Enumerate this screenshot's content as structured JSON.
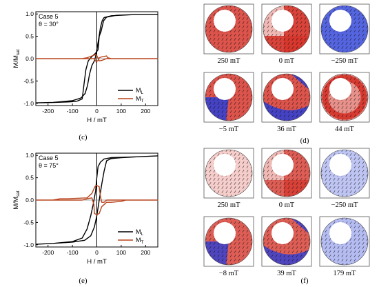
{
  "colors": {
    "ml": "#000000",
    "mt": "#b8431a",
    "red": "#d6362c",
    "blue": "#2a3fd8",
    "frame": "#555555"
  },
  "captions": {
    "c": "(c)",
    "d": "(d)",
    "e": "(e)",
    "f": "(f)"
  },
  "chart_data": [
    {
      "type": "line",
      "panel": "c",
      "annotation_case": "Case 5",
      "annotation_theta": "θ = 30°",
      "xlabel": "H / mT",
      "ylabel_main": "M/M",
      "ylabel_sub": "sat",
      "xlim": [
        -250,
        250
      ],
      "ylim": [
        -1.05,
        1.05
      ],
      "xticks": [
        "-200",
        "-100",
        "0",
        "100",
        "200"
      ],
      "xtick_values": [
        -200,
        -100,
        0,
        100,
        200
      ],
      "yticks": [
        "-1.0",
        "-0.5",
        "0.0",
        "0.5",
        "1.0"
      ],
      "ytick_values": [
        -1.0,
        -0.5,
        0.0,
        0.5,
        1.0
      ],
      "legend": [
        {
          "main": "M",
          "sub": "L"
        },
        {
          "main": "M",
          "sub": "T"
        }
      ],
      "series": [
        {
          "name": "M_L",
          "color_key": "ml",
          "points": [
            [
              -250,
              -0.99
            ],
            [
              -180,
              -0.98
            ],
            [
              -120,
              -0.97
            ],
            [
              -90,
              -0.96
            ],
            [
              -80,
              -0.95
            ],
            [
              -60,
              -0.9
            ],
            [
              -52,
              -0.55
            ],
            [
              -45,
              -0.25
            ],
            [
              -35,
              -0.05
            ],
            [
              -20,
              0.05
            ],
            [
              -5,
              0.12
            ],
            [
              5,
              0.2
            ],
            [
              10,
              0.5
            ],
            [
              18,
              0.62
            ],
            [
              22,
              0.72
            ],
            [
              28,
              0.85
            ],
            [
              40,
              0.93
            ],
            [
              80,
              0.97
            ],
            [
              150,
              0.985
            ],
            [
              250,
              0.99
            ],
            [
              150,
              0.985
            ],
            [
              60,
              0.96
            ],
            [
              30,
              0.92
            ],
            [
              22,
              0.85
            ],
            [
              15,
              0.7
            ],
            [
              8,
              0.45
            ],
            [
              0,
              0.2
            ],
            [
              -5,
              0.05
            ],
            [
              -10,
              -0.05
            ],
            [
              -20,
              -0.15
            ],
            [
              -30,
              -0.35
            ],
            [
              -38,
              -0.6
            ],
            [
              -48,
              -0.78
            ],
            [
              -65,
              -0.88
            ],
            [
              -100,
              -0.94
            ],
            [
              -180,
              -0.98
            ],
            [
              -250,
              -0.99
            ]
          ]
        },
        {
          "name": "M_T",
          "color_key": "mt",
          "points": [
            [
              -250,
              0.0
            ],
            [
              -60,
              0.0
            ],
            [
              -10,
              0.0
            ],
            [
              -5,
              -0.04
            ],
            [
              -2,
              -0.08
            ],
            [
              0,
              -0.06
            ],
            [
              5,
              -0.04
            ],
            [
              10,
              0.02
            ],
            [
              20,
              0.04
            ],
            [
              30,
              0.05
            ],
            [
              40,
              0.06
            ],
            [
              45,
              0.02
            ],
            [
              60,
              0.0
            ],
            [
              250,
              0.0
            ],
            [
              60,
              0.0
            ],
            [
              40,
              0.0
            ],
            [
              30,
              -0.02
            ],
            [
              20,
              -0.04
            ],
            [
              10,
              -0.05
            ],
            [
              0,
              0.07
            ],
            [
              -5,
              0.1
            ],
            [
              -10,
              0.08
            ],
            [
              -20,
              0.06
            ],
            [
              -30,
              0.04
            ],
            [
              -40,
              0.02
            ],
            [
              -60,
              0.0
            ],
            [
              -250,
              0.0
            ]
          ]
        }
      ]
    },
    {
      "type": "line",
      "panel": "e",
      "annotation_case": "Case 5",
      "annotation_theta": "θ = 75°",
      "xlabel": "H / mT",
      "ylabel_main": "M/M",
      "ylabel_sub": "sat",
      "xlim": [
        -250,
        250
      ],
      "ylim": [
        -1.05,
        1.05
      ],
      "xticks": [
        "-200",
        "-100",
        "0",
        "100",
        "200"
      ],
      "xtick_values": [
        -200,
        -100,
        0,
        100,
        200
      ],
      "yticks": [
        "-1.0",
        "-0.5",
        "0.0",
        "0.5",
        "1.0"
      ],
      "ytick_values": [
        -1.0,
        -0.5,
        0.0,
        0.5,
        1.0
      ],
      "legend": [
        {
          "main": "M",
          "sub": "L"
        },
        {
          "main": "M",
          "sub": "T"
        }
      ],
      "series": [
        {
          "name": "M_L",
          "color_key": "ml",
          "points": [
            [
              -250,
              -0.99
            ],
            [
              -180,
              -0.97
            ],
            [
              -100,
              -0.93
            ],
            [
              -60,
              -0.85
            ],
            [
              -40,
              -0.65
            ],
            [
              -25,
              -0.35
            ],
            [
              -15,
              -0.1
            ],
            [
              -5,
              0.2
            ],
            [
              0,
              0.5
            ],
            [
              5,
              0.75
            ],
            [
              15,
              0.85
            ],
            [
              30,
              0.92
            ],
            [
              60,
              0.95
            ],
            [
              120,
              0.96
            ],
            [
              170,
              0.97
            ],
            [
              250,
              0.99
            ],
            [
              170,
              0.97
            ],
            [
              100,
              0.95
            ],
            [
              60,
              0.93
            ],
            [
              40,
              0.88
            ],
            [
              30,
              0.65
            ],
            [
              20,
              0.35
            ],
            [
              10,
              0.0
            ],
            [
              0,
              -0.35
            ],
            [
              -10,
              -0.6
            ],
            [
              -25,
              -0.8
            ],
            [
              -50,
              -0.9
            ],
            [
              -100,
              -0.94
            ],
            [
              -180,
              -0.97
            ],
            [
              -250,
              -0.99
            ]
          ]
        },
        {
          "name": "M_T",
          "color_key": "mt",
          "points": [
            [
              -250,
              0.0
            ],
            [
              -180,
              0.0
            ],
            [
              -150,
              0.03
            ],
            [
              -120,
              0.03
            ],
            [
              -40,
              0.05
            ],
            [
              -20,
              0.15
            ],
            [
              -8,
              0.3
            ],
            [
              -2,
              0.33
            ],
            [
              10,
              0.3
            ],
            [
              12,
              0.2
            ],
            [
              15,
              0.08
            ],
            [
              20,
              -0.05
            ],
            [
              30,
              -0.05
            ],
            [
              40,
              0.0
            ],
            [
              250,
              0.0
            ],
            [
              120,
              0.0
            ],
            [
              100,
              -0.03
            ],
            [
              60,
              -0.05
            ],
            [
              40,
              -0.05
            ],
            [
              20,
              -0.15
            ],
            [
              10,
              -0.3
            ],
            [
              0,
              -0.33
            ],
            [
              -10,
              -0.3
            ],
            [
              -12,
              -0.1
            ],
            [
              -20,
              0.05
            ],
            [
              -30,
              0.04
            ],
            [
              -60,
              0.0
            ],
            [
              -250,
              0.0
            ]
          ]
        }
      ]
    }
  ],
  "grids": [
    {
      "panel": "d",
      "items": [
        {
          "label": "250 mT",
          "mode": "hole_tr",
          "level": 0.85,
          "color": "red"
        },
        {
          "label": "0 mT",
          "mode": "split",
          "level": 0.9,
          "color": "red"
        },
        {
          "label": "−250 mT",
          "mode": "hole_tr",
          "level": 0.8,
          "color": "blue"
        },
        {
          "label": "−5 mT",
          "mode": "quadrants",
          "level": 0.85,
          "color": "mixed"
        },
        {
          "label": "36 mT",
          "mode": "swirl",
          "level": 0.85,
          "color": "mixed"
        },
        {
          "label": "44 mT",
          "mode": "ring",
          "level": 0.85,
          "color": "red"
        }
      ]
    },
    {
      "panel": "f",
      "items": [
        {
          "label": "250 mT",
          "mode": "faint",
          "level": 0.25,
          "color": "red"
        },
        {
          "label": "0 mT",
          "mode": "split",
          "level": 0.7,
          "color": "red"
        },
        {
          "label": "−250 mT",
          "mode": "faint",
          "level": 0.3,
          "color": "blue"
        },
        {
          "label": "−8 mT",
          "mode": "quadrants",
          "level": 0.8,
          "color": "mixed"
        },
        {
          "label": "39 mT",
          "mode": "swirl",
          "level": 0.8,
          "color": "mixed"
        },
        {
          "label": "179 mT",
          "mode": "faint",
          "level": 0.35,
          "color": "blue"
        }
      ]
    }
  ]
}
